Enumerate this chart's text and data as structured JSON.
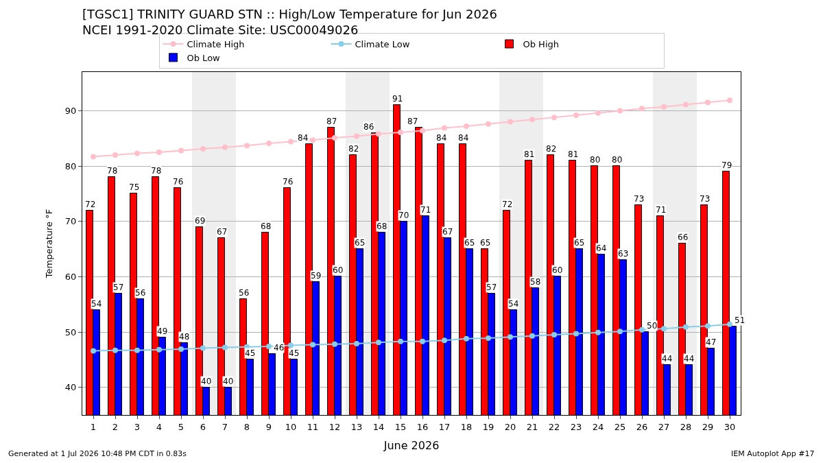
{
  "chart_data": {
    "type": "bar",
    "title": "[TGSC1] TRINITY GUARD STN :: High/Low Temperature for Jun 2026",
    "subtitle": "NCEI 1991-2020 Climate Site: USC00049026",
    "xlabel": "June 2026",
    "ylabel": "Temperature °F",
    "x": [
      1,
      2,
      3,
      4,
      5,
      6,
      7,
      8,
      9,
      10,
      11,
      12,
      13,
      14,
      15,
      16,
      17,
      18,
      19,
      20,
      21,
      22,
      23,
      24,
      25,
      26,
      27,
      28,
      29,
      30
    ],
    "xlim": [
      0.5,
      30.5
    ],
    "xticks": [
      1,
      2,
      3,
      4,
      5,
      6,
      7,
      8,
      9,
      10,
      11,
      12,
      13,
      14,
      15,
      16,
      17,
      18,
      19,
      20,
      21,
      22,
      23,
      24,
      25,
      26,
      27,
      28,
      29,
      30
    ],
    "ylim": [
      35,
      97
    ],
    "yticks": [
      40,
      50,
      60,
      70,
      80,
      90
    ],
    "grid": "y",
    "legend": "top",
    "series": [
      {
        "name": "Climate High",
        "type": "line",
        "marker": "circle",
        "color": "#ffc0cb",
        "values": [
          81.7,
          82.0,
          82.3,
          82.5,
          82.8,
          83.1,
          83.4,
          83.7,
          84.1,
          84.4,
          84.7,
          85.1,
          85.4,
          85.8,
          86.1,
          86.4,
          86.9,
          87.2,
          87.6,
          88.0,
          88.4,
          88.8,
          89.2,
          89.6,
          90.0,
          90.4,
          90.7,
          91.1,
          91.5,
          91.9
        ]
      },
      {
        "name": "Climate Low",
        "type": "line",
        "marker": "circle",
        "color": "#87ceeb",
        "values": [
          46.6,
          46.7,
          46.7,
          46.8,
          46.9,
          47.1,
          47.2,
          47.3,
          47.4,
          47.6,
          47.7,
          47.8,
          47.9,
          48.1,
          48.3,
          48.3,
          48.5,
          48.8,
          48.9,
          49.1,
          49.3,
          49.5,
          49.7,
          49.9,
          50.1,
          50.4,
          50.6,
          50.9,
          51.1,
          51.4
        ]
      },
      {
        "name": "Ob High",
        "color": "#ff0000",
        "data_labels": true,
        "values": [
          72,
          78,
          75,
          78,
          76,
          69,
          67,
          56,
          68,
          76,
          84,
          87,
          82,
          86,
          91,
          87,
          84,
          84,
          65,
          72,
          81,
          82,
          81,
          80,
          80,
          73,
          71,
          66,
          73,
          79
        ]
      },
      {
        "name": "Ob Low",
        "color": "#0000ff",
        "data_labels": true,
        "values": [
          54,
          57,
          56,
          49,
          48,
          40,
          40,
          45,
          46,
          45,
          59,
          60,
          65,
          68,
          70,
          71,
          67,
          65,
          57,
          54,
          58,
          60,
          65,
          64,
          63,
          50,
          44,
          44,
          47,
          51
        ]
      }
    ],
    "bands": [
      {
        "axis": "x",
        "from": 5.5,
        "to": 7.5,
        "color": "#eeeeee"
      },
      {
        "axis": "x",
        "from": 12.5,
        "to": 14.5,
        "color": "#eeeeee"
      },
      {
        "axis": "x",
        "from": 19.5,
        "to": 21.5,
        "color": "#eeeeee"
      },
      {
        "axis": "x",
        "from": 26.5,
        "to": 28.5,
        "color": "#eeeeee"
      }
    ],
    "annotations": [
      "Generated at 1 Jul 2026 10:48 PM CDT in 0.83s",
      "IEM Autoplot App #17"
    ]
  }
}
